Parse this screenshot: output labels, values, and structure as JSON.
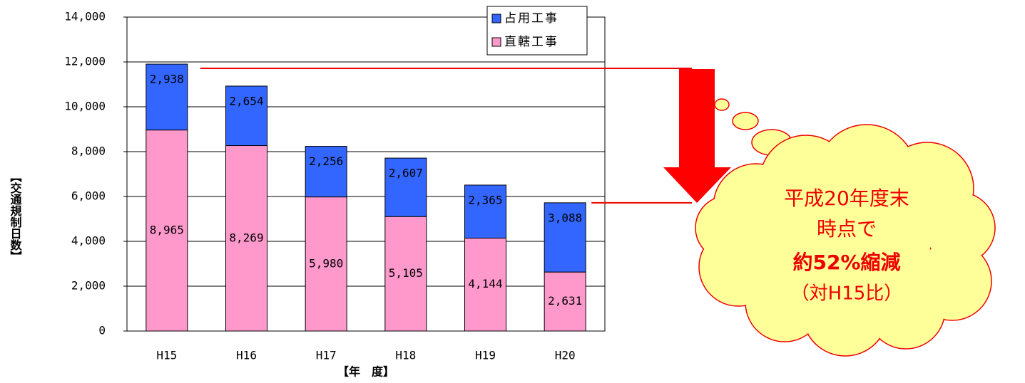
{
  "chart_data": {
    "type": "stacked_bar",
    "y_label": "【交通規制日数】",
    "x_label": "【年　度】",
    "categories": [
      "H15",
      "H16",
      "H17",
      "H18",
      "H19",
      "H20"
    ],
    "series": [
      {
        "name": "直轄工事",
        "color": "#ff99cc",
        "values": [
          8965,
          8269,
          5980,
          5105,
          4144,
          2631
        ],
        "value_labels": [
          "8,965",
          "8,269",
          "5,980",
          "5,105",
          "4,144",
          "2,631"
        ]
      },
      {
        "name": "占用工事",
        "color": "#3366ff",
        "values": [
          2938,
          2654,
          2256,
          2607,
          2365,
          3088
        ],
        "value_labels": [
          "2,938",
          "2,654",
          "2,256",
          "2,607",
          "2,365",
          "3,088"
        ]
      }
    ],
    "ylim": [
      0,
      14000
    ],
    "yticks": [
      0,
      {
        "value": 2000,
        "label": "2,000"
      },
      {
        "value": 4000,
        "label": "4,000"
      },
      {
        "value": 6000,
        "label": "6,000"
      },
      {
        "value": 8000,
        "label": "8,000"
      },
      {
        "value": 10000,
        "label": "10,000"
      },
      {
        "value": 12000,
        "label": "12,000"
      },
      {
        "value": 14000,
        "label": "14,000"
      }
    ],
    "grid": true,
    "legend": "top-right",
    "annotation": [
      "平成20年度末",
      "時点で",
      "約52%縮減",
      "（対H15比）"
    ]
  }
}
